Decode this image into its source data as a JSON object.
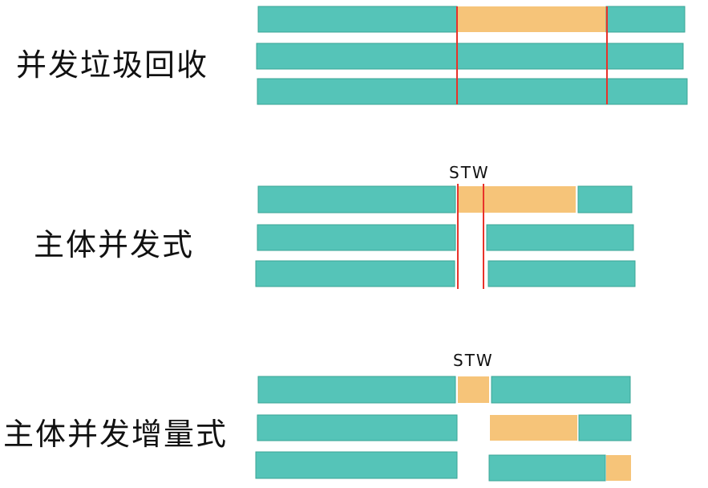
{
  "labels": {
    "concurrent_gc": "并发垃圾回收",
    "mostly_concurrent": "主体并发式",
    "mostly_concurrent_incremental": "主体并发增量式",
    "stw_1": "STW",
    "stw_2": "STW"
  },
  "colors": {
    "app_thread": "#55c4b8",
    "app_border": "#3aa596",
    "gc_thread": "#f6c479",
    "pause_line": "#e8322a"
  }
}
